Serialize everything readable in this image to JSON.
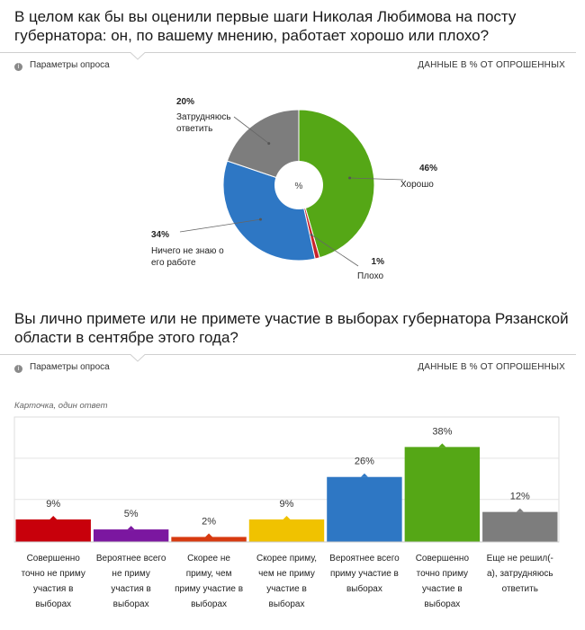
{
  "question1": {
    "title_line1": "В целом как бы вы оценили первые шаги Николая Любимова на посту",
    "title_line2": "губернатора: он, по вашему мнению, работает хорошо или плохо?",
    "params_label": "Параметры опроса",
    "data_label": "ДАННЫЕ В % ОТ ОПРОШЕННЫХ",
    "info_icon": "info-icon"
  },
  "question2": {
    "title_line1": "Вы лично примете или не примете участие в выборах губернатора Рязанской",
    "title_line2": "области в сентябре этого года?",
    "params_label": "Параметры опроса",
    "data_label": "ДАННЫЕ В % ОТ ОПРОШЕННЫХ",
    "subcaption": "Карточка, один ответ",
    "info_icon": "info-icon"
  },
  "chart_data": [
    {
      "type": "pie",
      "center_label": "%",
      "slices": [
        {
          "label": "Хорошо",
          "value": 46,
          "value_label": "46%",
          "color": "#55a716"
        },
        {
          "label": "Плохо",
          "value": 1,
          "value_label": "1%",
          "color": "#c8232c"
        },
        {
          "label": "Ничего не знаю о его работе",
          "label_lines": [
            "Ничего не знаю о",
            "его работе"
          ],
          "value": 34,
          "value_label": "34%",
          "color": "#2e77c4"
        },
        {
          "label": "Затрудняюсь ответить",
          "label_lines": [
            "Затрудняюсь",
            "ответить"
          ],
          "value": 20,
          "value_label": "20%",
          "color": "#7d7d7d"
        }
      ]
    },
    {
      "type": "bar",
      "ylim": [
        0,
        50
      ],
      "categories": [
        "Совершенно точно не приму участия в выборах",
        "Вероятнее всего не приму участия в выборах",
        "Скорее не приму, чем приму участие в выборах",
        "Скорее приму, чем не приму участие в выборах",
        "Вероятнее всего приму участие в выборах",
        "Совершенно точно приму участие в выборах",
        "Еще не решил(-а), затрудняюсь ответить"
      ],
      "category_lines": [
        [
          "Совершенно",
          "точно не приму",
          "участия в",
          "выборах"
        ],
        [
          "Вероятнее всего",
          "не приму",
          "участия в",
          "выборах"
        ],
        [
          "Скорее не",
          "приму, чем",
          "приму участие в",
          "выборах"
        ],
        [
          "Скорее приму,",
          "чем не приму",
          "участие в",
          "выборах"
        ],
        [
          "Вероятнее всего",
          "приму участие в",
          "выборах"
        ],
        [
          "Совершенно",
          "точно приму",
          "участие в",
          "выборах"
        ],
        [
          "Еще не решил(-",
          "а), затрудняюсь",
          "ответить"
        ]
      ],
      "values": [
        9,
        5,
        2,
        9,
        26,
        38,
        12
      ],
      "value_labels": [
        "9%",
        "5%",
        "2%",
        "9%",
        "26%",
        "38%",
        "12%"
      ],
      "colors": [
        "#c8000b",
        "#7b17a0",
        "#d73a10",
        "#f0c200",
        "#2e77c4",
        "#55a716",
        "#7d7d7d"
      ],
      "grid": true
    }
  ]
}
